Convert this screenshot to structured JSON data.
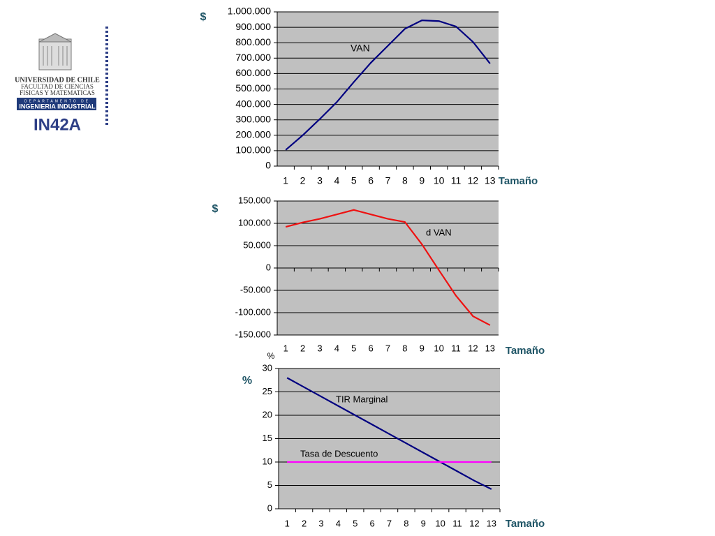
{
  "logo": {
    "university": "UNIVERSIDAD DE CHILE",
    "faculty_1": "FACULTAD DE CIENCIAS",
    "faculty_2": "FISICAS Y MATEMATICAS",
    "department": "DEPARTAMENTO DE",
    "department_name": "INGENIERIA INDUSTRIAL"
  },
  "course": "IN42A",
  "chart_data": [
    {
      "type": "line",
      "y_label": "$",
      "x_label": "Tamaño",
      "annotations": [
        "VAN"
      ],
      "grid": true,
      "categories": [
        "1",
        "2",
        "3",
        "4",
        "5",
        "6",
        "7",
        "8",
        "9",
        "10",
        "11",
        "12",
        "13"
      ],
      "series": [
        {
          "name": "VAN",
          "color": "#000080",
          "values": [
            105000,
            200000,
            305000,
            415000,
            545000,
            670000,
            780000,
            890000,
            945000,
            940000,
            905000,
            805000,
            665000
          ]
        }
      ],
      "ylim": [
        0,
        1000000
      ],
      "yticks": [
        0,
        {
          "value": 100000,
          "label": "100.000"
        },
        {
          "value": 200000,
          "label": "200.000"
        },
        {
          "value": 300000,
          "label": "300.000"
        },
        {
          "value": 400000,
          "label": "400.000"
        },
        {
          "value": 500000,
          "label": "500.000"
        },
        {
          "value": 600000,
          "label": "600.000"
        },
        {
          "value": 700000,
          "label": "700.000"
        },
        {
          "value": 800000,
          "label": "800.000"
        },
        {
          "value": 900000,
          "label": "900.000"
        },
        {
          "value": 1000000,
          "label": "1.000.000"
        }
      ]
    },
    {
      "type": "line",
      "y_label": "$",
      "x_label": "Tamaño",
      "annotations": [
        "d VAN"
      ],
      "grid": true,
      "categories": [
        "1",
        "2",
        "3",
        "4",
        "5",
        "6",
        "7",
        "8",
        "9",
        "10",
        "11",
        "12",
        "13"
      ],
      "series": [
        {
          "name": "d VAN",
          "color": "#ee1111",
          "values": [
            92000,
            102000,
            110000,
            120000,
            130000,
            120000,
            110000,
            103000,
            53000,
            -5000,
            -62000,
            -108000,
            -128000
          ]
        }
      ],
      "ylim": [
        -150000,
        150000
      ],
      "yticks": [
        {
          "value": -150000,
          "label": "-150.000"
        },
        {
          "value": -100000,
          "label": "-100.000"
        },
        {
          "value": -50000,
          "label": "-50.000"
        },
        0,
        {
          "value": 50000,
          "label": "50.000"
        },
        {
          "value": 100000,
          "label": "100.000"
        },
        {
          "value": 150000,
          "label": "150.000"
        }
      ]
    },
    {
      "type": "line",
      "y_label": "%",
      "axis_unit": "%",
      "x_label": "Tamaño",
      "annotations": [
        "TIR Marginal",
        "Tasa de Descuento"
      ],
      "grid": true,
      "categories": [
        "1",
        "2",
        "3",
        "4",
        "5",
        "6",
        "7",
        "8",
        "9",
        "10",
        "11",
        "12",
        "13"
      ],
      "series": [
        {
          "name": "TIR Marginal",
          "color": "#000080",
          "values": [
            28,
            26,
            24,
            22,
            20,
            18,
            16,
            14,
            12,
            10,
            8,
            6,
            4.2
          ]
        },
        {
          "name": "Tasa de Descuento",
          "color": "#ff00ff",
          "values": [
            10,
            10,
            10,
            10,
            10,
            10,
            10,
            10,
            10,
            10,
            10,
            10,
            10
          ]
        }
      ],
      "ylim": [
        0,
        30
      ],
      "yticks": [
        0,
        5,
        10,
        15,
        20,
        25,
        30
      ]
    }
  ]
}
